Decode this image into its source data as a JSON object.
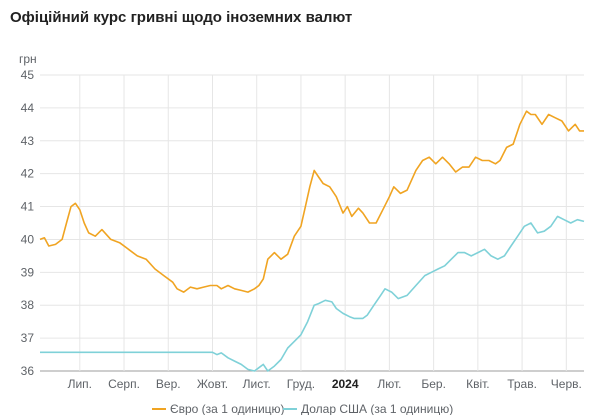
{
  "chart_data": {
    "type": "line",
    "title": "Офіційний курс гривні щодо іноземних валют",
    "ylabel": "грн",
    "ylim": [
      36,
      45
    ],
    "yticks": [
      36,
      37,
      38,
      39,
      40,
      41,
      42,
      43,
      44,
      45
    ],
    "xlim": [
      0,
      12.3
    ],
    "xticks": [
      {
        "label": "Лип.",
        "pos": 0.9,
        "bold": false
      },
      {
        "label": "Серп.",
        "pos": 1.9,
        "bold": false
      },
      {
        "label": "Вер.",
        "pos": 2.9,
        "bold": false
      },
      {
        "label": "Жовт.",
        "pos": 3.9,
        "bold": false
      },
      {
        "label": "Лист.",
        "pos": 4.9,
        "bold": false
      },
      {
        "label": "Груд.",
        "pos": 5.9,
        "bold": false
      },
      {
        "label": "2024",
        "pos": 6.9,
        "bold": true
      },
      {
        "label": "Лют.",
        "pos": 7.9,
        "bold": false
      },
      {
        "label": "Бер.",
        "pos": 8.9,
        "bold": false
      },
      {
        "label": "Квіт.",
        "pos": 9.9,
        "bold": false
      },
      {
        "label": "Трав.",
        "pos": 10.9,
        "bold": false
      },
      {
        "label": "Черв.",
        "pos": 11.9,
        "bold": false
      }
    ],
    "grid": true,
    "legend_position": "bottom",
    "series": [
      {
        "name": "Євро (за 1 одиницю)",
        "color": "#f0a422",
        "points": [
          [
            0.0,
            40.0
          ],
          [
            0.1,
            40.05
          ],
          [
            0.2,
            39.8
          ],
          [
            0.35,
            39.85
          ],
          [
            0.5,
            40.0
          ],
          [
            0.6,
            40.5
          ],
          [
            0.7,
            41.0
          ],
          [
            0.8,
            41.1
          ],
          [
            0.9,
            40.9
          ],
          [
            1.0,
            40.5
          ],
          [
            1.1,
            40.2
          ],
          [
            1.25,
            40.1
          ],
          [
            1.4,
            40.3
          ],
          [
            1.6,
            40.0
          ],
          [
            1.8,
            39.9
          ],
          [
            2.0,
            39.7
          ],
          [
            2.2,
            39.5
          ],
          [
            2.4,
            39.4
          ],
          [
            2.6,
            39.1
          ],
          [
            2.8,
            38.9
          ],
          [
            3.0,
            38.7
          ],
          [
            3.1,
            38.5
          ],
          [
            3.25,
            38.4
          ],
          [
            3.4,
            38.55
          ],
          [
            3.55,
            38.5
          ],
          [
            3.7,
            38.55
          ],
          [
            3.85,
            38.6
          ],
          [
            4.0,
            38.6
          ],
          [
            4.1,
            38.5
          ],
          [
            4.25,
            38.6
          ],
          [
            4.4,
            38.5
          ],
          [
            4.55,
            38.45
          ],
          [
            4.7,
            38.4
          ],
          [
            4.85,
            38.5
          ],
          [
            4.95,
            38.6
          ],
          [
            5.05,
            38.8
          ],
          [
            5.15,
            39.4
          ],
          [
            5.3,
            39.6
          ],
          [
            5.45,
            39.4
          ],
          [
            5.6,
            39.55
          ],
          [
            5.75,
            40.1
          ],
          [
            5.9,
            40.4
          ],
          [
            6.0,
            41.0
          ],
          [
            6.1,
            41.6
          ],
          [
            6.2,
            42.1
          ],
          [
            6.3,
            41.9
          ],
          [
            6.4,
            41.7
          ],
          [
            6.55,
            41.6
          ],
          [
            6.7,
            41.3
          ],
          [
            6.85,
            40.8
          ],
          [
            6.95,
            41.0
          ],
          [
            7.05,
            40.7
          ],
          [
            7.2,
            40.95
          ],
          [
            7.3,
            40.8
          ],
          [
            7.45,
            40.5
          ],
          [
            7.6,
            40.5
          ],
          [
            7.75,
            40.9
          ],
          [
            7.9,
            41.3
          ],
          [
            8.0,
            41.6
          ],
          [
            8.15,
            41.4
          ],
          [
            8.3,
            41.5
          ],
          [
            8.5,
            42.1
          ],
          [
            8.65,
            42.4
          ],
          [
            8.8,
            42.5
          ],
          [
            8.95,
            42.3
          ],
          [
            9.1,
            42.5
          ],
          [
            9.25,
            42.3
          ],
          [
            9.4,
            42.05
          ],
          [
            9.55,
            42.2
          ],
          [
            9.7,
            42.2
          ],
          [
            9.85,
            42.5
          ],
          [
            10.0,
            42.4
          ],
          [
            10.15,
            42.4
          ],
          [
            10.3,
            42.3
          ],
          [
            10.4,
            42.4
          ],
          [
            10.55,
            42.8
          ],
          [
            10.7,
            42.9
          ],
          [
            10.85,
            43.5
          ],
          [
            11.0,
            43.9
          ],
          [
            11.1,
            43.8
          ],
          [
            11.2,
            43.8
          ],
          [
            11.35,
            43.5
          ],
          [
            11.5,
            43.8
          ],
          [
            11.65,
            43.7
          ],
          [
            11.8,
            43.6
          ],
          [
            11.95,
            43.3
          ],
          [
            12.1,
            43.5
          ],
          [
            12.2,
            43.3
          ],
          [
            12.3,
            43.3
          ]
        ]
      },
      {
        "name": "Долар США (за 1 одиницю)",
        "color": "#7fd1d8",
        "points": [
          [
            0.0,
            36.57
          ],
          [
            1.0,
            36.57
          ],
          [
            2.0,
            36.57
          ],
          [
            3.0,
            36.57
          ],
          [
            3.9,
            36.57
          ],
          [
            4.0,
            36.5
          ],
          [
            4.1,
            36.55
          ],
          [
            4.25,
            36.4
          ],
          [
            4.4,
            36.3
          ],
          [
            4.55,
            36.2
          ],
          [
            4.7,
            36.05
          ],
          [
            4.85,
            36.0
          ],
          [
            4.95,
            36.1
          ],
          [
            5.05,
            36.2
          ],
          [
            5.15,
            36.0
          ],
          [
            5.3,
            36.15
          ],
          [
            5.45,
            36.35
          ],
          [
            5.6,
            36.7
          ],
          [
            5.75,
            36.9
          ],
          [
            5.9,
            37.1
          ],
          [
            6.05,
            37.5
          ],
          [
            6.2,
            38.0
          ],
          [
            6.3,
            38.05
          ],
          [
            6.45,
            38.15
          ],
          [
            6.6,
            38.1
          ],
          [
            6.7,
            37.9
          ],
          [
            6.85,
            37.75
          ],
          [
            7.0,
            37.65
          ],
          [
            7.1,
            37.6
          ],
          [
            7.2,
            37.6
          ],
          [
            7.3,
            37.6
          ],
          [
            7.4,
            37.7
          ],
          [
            7.55,
            38.0
          ],
          [
            7.7,
            38.3
          ],
          [
            7.8,
            38.5
          ],
          [
            7.95,
            38.4
          ],
          [
            8.1,
            38.2
          ],
          [
            8.3,
            38.3
          ],
          [
            8.5,
            38.6
          ],
          [
            8.7,
            38.9
          ],
          [
            8.85,
            39.0
          ],
          [
            9.0,
            39.1
          ],
          [
            9.15,
            39.2
          ],
          [
            9.3,
            39.4
          ],
          [
            9.45,
            39.6
          ],
          [
            9.6,
            39.6
          ],
          [
            9.75,
            39.5
          ],
          [
            9.9,
            39.6
          ],
          [
            10.05,
            39.7
          ],
          [
            10.2,
            39.5
          ],
          [
            10.35,
            39.4
          ],
          [
            10.5,
            39.5
          ],
          [
            10.65,
            39.8
          ],
          [
            10.8,
            40.1
          ],
          [
            10.95,
            40.4
          ],
          [
            11.1,
            40.5
          ],
          [
            11.25,
            40.2
          ],
          [
            11.4,
            40.25
          ],
          [
            11.55,
            40.4
          ],
          [
            11.7,
            40.7
          ],
          [
            11.85,
            40.6
          ],
          [
            12.0,
            40.5
          ],
          [
            12.15,
            40.6
          ],
          [
            12.3,
            40.55
          ]
        ]
      }
    ]
  }
}
